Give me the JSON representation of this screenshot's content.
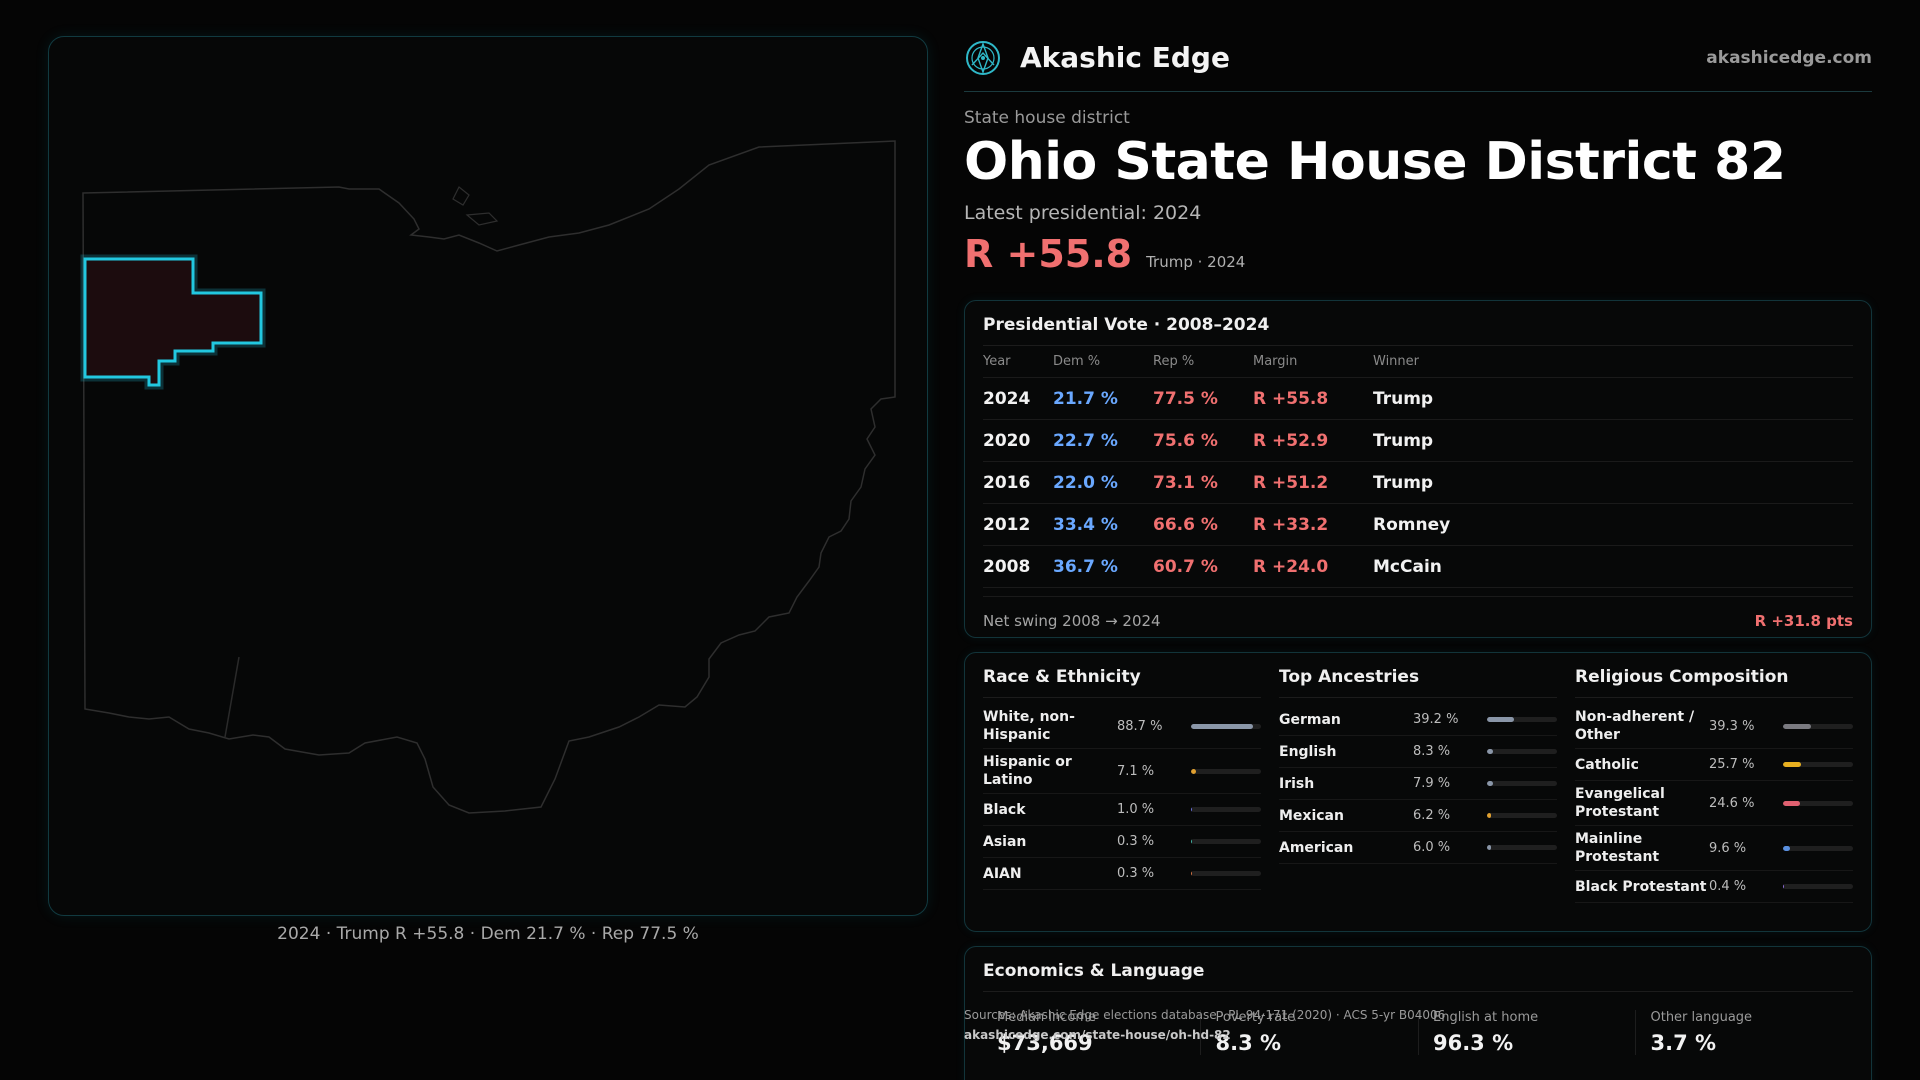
{
  "map": {
    "caption": "2024 · Trump R +55.8 · Dem 21.7 % · Rep 77.5 %"
  },
  "brand": {
    "name": "Akashic Edge",
    "url": "akashicedge.com",
    "logo_icon": "compass-emblem-icon",
    "accent": "#2fb8c8"
  },
  "district": {
    "kind": "State house district",
    "title": "Ohio State House District 82",
    "latest_label": "Latest presidential: 2024",
    "margin": "R +55.8",
    "margin_sub": "Trump · 2024"
  },
  "vote": {
    "title": "Presidential Vote · 2008–2024",
    "headers": {
      "year": "Year",
      "dem": "Dem %",
      "rep": "Rep %",
      "margin": "Margin",
      "winner": "Winner"
    },
    "rows": [
      {
        "year": "2024",
        "dem": "21.7 %",
        "rep": "77.5 %",
        "margin": "R +55.8",
        "winner": "Trump"
      },
      {
        "year": "2020",
        "dem": "22.7 %",
        "rep": "75.6 %",
        "margin": "R +52.9",
        "winner": "Trump"
      },
      {
        "year": "2016",
        "dem": "22.0 %",
        "rep": "73.1 %",
        "margin": "R +51.2",
        "winner": "Trump"
      },
      {
        "year": "2012",
        "dem": "33.4 %",
        "rep": "66.6 %",
        "margin": "R +33.2",
        "winner": "Romney"
      },
      {
        "year": "2008",
        "dem": "36.7 %",
        "rep": "60.7 %",
        "margin": "R +24.0",
        "winner": "McCain"
      }
    ],
    "net_swing_label": "Net swing 2008 → 2024",
    "net_swing_value": "R +31.8 pts"
  },
  "race": {
    "title": "Race & Ethnicity",
    "rows": [
      {
        "label": "White, non-Hispanic",
        "value": "88.7 %",
        "pct": 88.7,
        "color": "#8a96a8"
      },
      {
        "label": "Hispanic or Latino",
        "value": "7.1 %",
        "pct": 7.1,
        "color": "#e0a030"
      },
      {
        "label": "Black",
        "value": "1.0 %",
        "pct": 1.0,
        "color": "#6a70d8"
      },
      {
        "label": "Asian",
        "value": "0.3 %",
        "pct": 0.3,
        "color": "#40b0a0"
      },
      {
        "label": "AIAN",
        "value": "0.3 %",
        "pct": 0.3,
        "color": "#d07040"
      }
    ]
  },
  "ancestry": {
    "title": "Top Ancestries",
    "rows": [
      {
        "label": "German",
        "value": "39.2 %",
        "pct": 39.2,
        "color": "#8a96a8"
      },
      {
        "label": "English",
        "value": "8.3 %",
        "pct": 8.3,
        "color": "#8a96a8"
      },
      {
        "label": "Irish",
        "value": "7.9 %",
        "pct": 7.9,
        "color": "#8a96a8"
      },
      {
        "label": "Mexican",
        "value": "6.2 %",
        "pct": 6.2,
        "color": "#e0a030"
      },
      {
        "label": "American",
        "value": "6.0 %",
        "pct": 6.0,
        "color": "#8a96a8"
      }
    ]
  },
  "religion": {
    "title": "Religious Composition",
    "rows": [
      {
        "label": "Non-adherent / Other",
        "value": "39.3 %",
        "pct": 39.3,
        "color": "#7a7a80"
      },
      {
        "label": "Catholic",
        "value": "25.7 %",
        "pct": 25.7,
        "color": "#e8b020"
      },
      {
        "label": "Evangelical Protestant",
        "value": "24.6 %",
        "pct": 24.6,
        "color": "#e06070"
      },
      {
        "label": "Mainline Protestant",
        "value": "9.6 %",
        "pct": 9.6,
        "color": "#5a90e0"
      },
      {
        "label": "Black Protestant",
        "value": "0.4 %",
        "pct": 0.4,
        "color": "#8a6ad0"
      }
    ]
  },
  "economics": {
    "title": "Economics & Language",
    "cells": [
      {
        "label": "Median income",
        "value": "$73,669"
      },
      {
        "label": "Poverty rate",
        "value": "8.3 %"
      },
      {
        "label": "English at home",
        "value": "96.3 %"
      },
      {
        "label": "Other language",
        "value": "3.7 %"
      }
    ]
  },
  "source": {
    "line1": "Sources: Akashic Edge elections database · PL 94-171 (2020) · ACS 5-yr B04006",
    "line2": "akashicedge.com/state-house/oh-hd-82"
  }
}
